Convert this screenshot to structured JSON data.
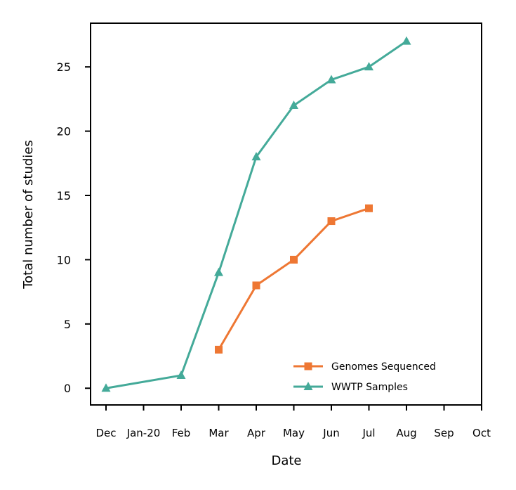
{
  "chart_data": {
    "type": "line",
    "title": "",
    "xlabel": "Date",
    "ylabel": "Total number of studies",
    "x_categories": [
      "Dec",
      "Jan-20",
      "Feb",
      "Mar",
      "Apr",
      "May",
      "Jun",
      "Jul",
      "Aug",
      "Sep",
      "Oct"
    ],
    "x_range": [
      "Dec",
      "Oct"
    ],
    "yticks": [
      0,
      5,
      10,
      15,
      20,
      25
    ],
    "ylim": [
      -1.3,
      28.4
    ],
    "grid": false,
    "legend_position": "lower-right",
    "series": [
      {
        "name": "Genomes Sequenced",
        "color": "#ee7733",
        "marker": "square",
        "points": [
          {
            "x": "Mar",
            "y": 3
          },
          {
            "x": "Apr",
            "y": 8
          },
          {
            "x": "May",
            "y": 10
          },
          {
            "x": "Jun",
            "y": 13
          },
          {
            "x": "Jul",
            "y": 14
          }
        ]
      },
      {
        "name": "WWTP Samples",
        "color": "#44aa99",
        "marker": "triangle",
        "points": [
          {
            "x": "Dec",
            "y": 0
          },
          {
            "x": "Feb",
            "y": 1
          },
          {
            "x": "Mar",
            "y": 9
          },
          {
            "x": "Apr",
            "y": 18
          },
          {
            "x": "May",
            "y": 22
          },
          {
            "x": "Jun",
            "y": 24
          },
          {
            "x": "Jul",
            "y": 25
          },
          {
            "x": "Aug",
            "y": 27
          }
        ]
      }
    ]
  }
}
